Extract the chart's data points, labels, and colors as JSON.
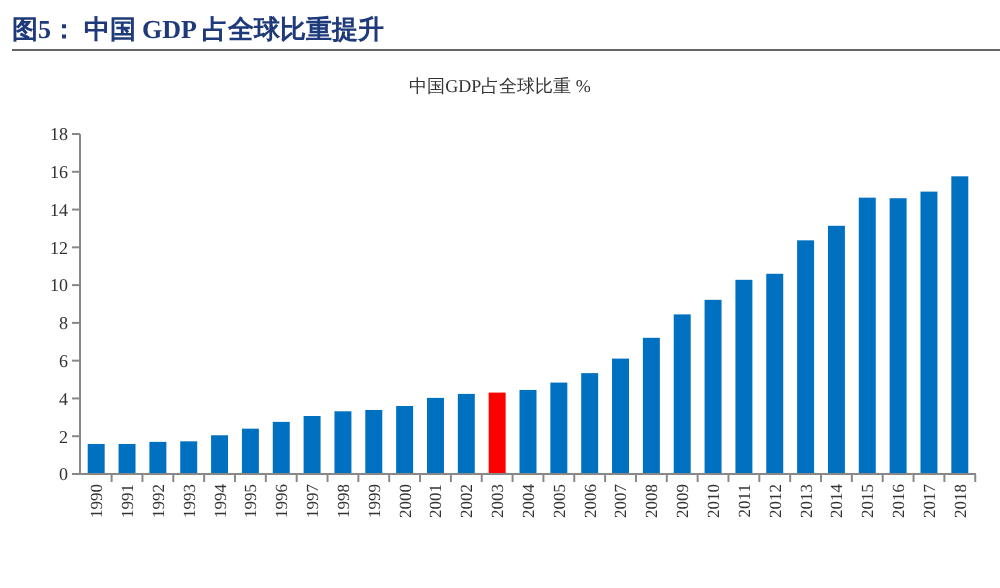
{
  "chart_data": {
    "type": "bar",
    "title": "图5：  中国 GDP 占全球比重提升",
    "subtitle": "中国GDP占全球比重 %",
    "categories": [
      "1990",
      "1991",
      "1992",
      "1993",
      "1994",
      "1995",
      "1996",
      "1997",
      "1998",
      "1999",
      "2000",
      "2001",
      "2002",
      "2003",
      "2004",
      "2005",
      "2006",
      "2007",
      "2008",
      "2009",
      "2010",
      "2011",
      "2012",
      "2013",
      "2014",
      "2015",
      "2016",
      "2017",
      "2018"
    ],
    "values": [
      1.59,
      1.59,
      1.7,
      1.73,
      2.05,
      2.4,
      2.76,
      3.07,
      3.32,
      3.39,
      3.6,
      4.03,
      4.24,
      4.31,
      4.45,
      4.84,
      5.34,
      6.11,
      7.21,
      8.45,
      9.22,
      10.28,
      10.6,
      12.37,
      13.14,
      14.63,
      14.6,
      14.95,
      15.76
    ],
    "colors": [
      "#0070c0",
      "#0070c0",
      "#0070c0",
      "#0070c0",
      "#0070c0",
      "#0070c0",
      "#0070c0",
      "#0070c0",
      "#0070c0",
      "#0070c0",
      "#0070c0",
      "#0070c0",
      "#0070c0",
      "#ff0000",
      "#0070c0",
      "#0070c0",
      "#0070c0",
      "#0070c0",
      "#0070c0",
      "#0070c0",
      "#0070c0",
      "#0070c0",
      "#0070c0",
      "#0070c0",
      "#0070c0",
      "#0070c0",
      "#0070c0",
      "#0070c0",
      "#0070c0"
    ],
    "ylim": [
      0,
      18
    ],
    "yticks": [
      0,
      2,
      4,
      6,
      8,
      10,
      12,
      14,
      16,
      18
    ],
    "grid": false
  }
}
